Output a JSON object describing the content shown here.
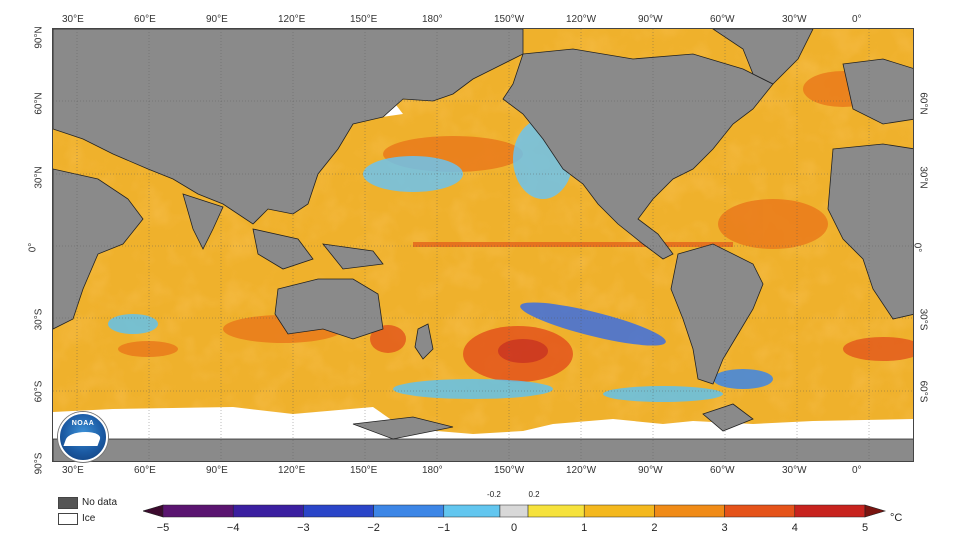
{
  "map": {
    "lon_labels": [
      "30°E",
      "60°E",
      "90°E",
      "120°E",
      "150°E",
      "180°",
      "150°W",
      "120°W",
      "90°W",
      "60°W",
      "30°W",
      "0°"
    ],
    "lat_labels_left": [
      "90°N",
      "60°N",
      "30°N",
      "0°",
      "30°S",
      "60°S",
      "90°S"
    ],
    "lat_labels_right": [
      "60°N",
      "30°N",
      "0°",
      "30°S",
      "60°S"
    ],
    "logo_text": "NOAA",
    "land_color": "#8a8a8a",
    "ice_color": "#ffffff",
    "ocean_base_color": "#e9a928"
  },
  "legend": {
    "no_data": "No data",
    "ice": "Ice"
  },
  "colorbar": {
    "ticks": [
      "−5",
      "−4",
      "−3",
      "−2",
      "−1",
      "0",
      "1",
      "2",
      "3",
      "4",
      "5"
    ],
    "near_zero": [
      "-0.2",
      "0.2"
    ],
    "unit": "°C",
    "colors": [
      "#3c0a2e",
      "#5a1470",
      "#3b1fa0",
      "#2a45c8",
      "#3d86e6",
      "#62c6ef",
      "#d8d8d8",
      "#f6e23c",
      "#f4b81e",
      "#f08b17",
      "#e5531a",
      "#c7231e",
      "#7a1410"
    ]
  }
}
